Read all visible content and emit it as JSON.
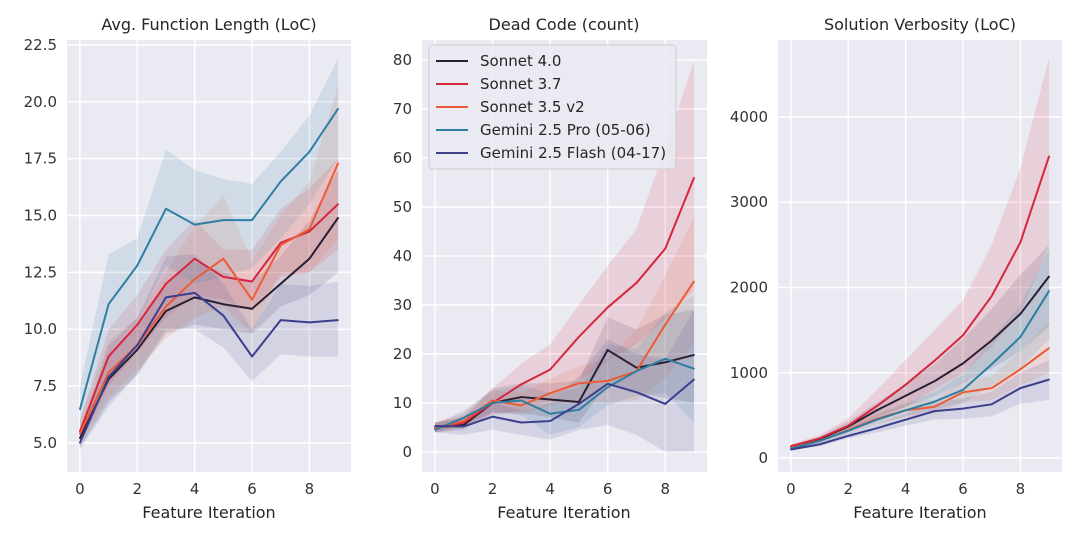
{
  "series_colors": {
    "Sonnet 4.0": "#2b1d33",
    "Sonnet 3.7": "#d6263f",
    "Sonnet 3.5 v2": "#ec5b38",
    "Gemini 2.5 Pro (05-06)": "#2f7ea1",
    "Gemini 2.5 Flash (04-17)": "#3c3f8c"
  },
  "background": "#eaeaf2",
  "chart_data": [
    {
      "type": "line",
      "title": "Avg. Function Length (LoC)",
      "xlabel": "Feature Iteration",
      "ylabel": "",
      "xlim": [
        -0.45,
        9.45
      ],
      "ylim": [
        3.72,
        22.72
      ],
      "xticks": [
        0,
        2,
        4,
        6,
        8
      ],
      "yticks": [
        "5.0",
        "7.5",
        "10.0",
        "12.5",
        "15.0",
        "17.5",
        "20.0",
        "22.5"
      ],
      "grid": true,
      "legend": "none",
      "x": [
        0,
        1,
        2,
        3,
        4,
        5,
        6,
        7,
        8,
        9
      ],
      "series": [
        {
          "name": "Sonnet 4.0",
          "values": [
            5.2,
            7.8,
            9.1,
            10.8,
            11.4,
            11.1,
            10.9,
            12.0,
            13.1,
            14.9
          ],
          "lower": [
            4.8,
            6.8,
            8.0,
            9.8,
            10.2,
            10.0,
            9.8,
            11.0,
            11.5,
            12.5
          ],
          "upper": [
            5.6,
            9.0,
            10.2,
            12.0,
            13.0,
            12.5,
            12.1,
            13.2,
            14.8,
            17.0
          ]
        },
        {
          "name": "Sonnet 3.7",
          "values": [
            5.5,
            8.8,
            10.2,
            12.0,
            13.1,
            12.3,
            12.1,
            13.8,
            14.3,
            15.5
          ],
          "lower": [
            5.0,
            7.5,
            9.0,
            10.5,
            11.5,
            11.3,
            10.8,
            12.3,
            12.5,
            13.5
          ],
          "upper": [
            6.0,
            10.0,
            11.5,
            13.5,
            14.8,
            13.5,
            13.5,
            15.3,
            16.2,
            17.5
          ]
        },
        {
          "name": "Sonnet 3.5 v2",
          "values": [
            5.4,
            8.1,
            9.3,
            11.0,
            12.2,
            13.1,
            11.3,
            13.7,
            14.4,
            17.3
          ],
          "lower": [
            5.0,
            7.0,
            8.2,
            9.6,
            10.5,
            11.0,
            9.8,
            12.5,
            12.5,
            14.0
          ],
          "upper": [
            6.0,
            9.5,
            10.5,
            12.5,
            14.5,
            15.9,
            13.0,
            15.0,
            16.5,
            20.7
          ]
        },
        {
          "name": "Gemini 2.5 Pro (05-06)",
          "values": [
            6.47,
            11.1,
            12.8,
            15.3,
            14.6,
            14.8,
            14.8,
            16.5,
            17.8,
            19.7
          ],
          "lower": [
            5.5,
            9.0,
            10.3,
            12.8,
            12.0,
            12.3,
            12.7,
            14.0,
            15.5,
            17.5
          ],
          "upper": [
            7.5,
            13.3,
            14.0,
            17.9,
            17.0,
            16.6,
            16.4,
            17.8,
            19.4,
            21.9
          ]
        },
        {
          "name": "Gemini 2.5 Flash (04-17)",
          "values": [
            5.0,
            7.9,
            9.3,
            11.4,
            11.6,
            10.6,
            8.8,
            10.4,
            10.3,
            10.4
          ],
          "lower": [
            4.7,
            6.6,
            8.0,
            10.0,
            10.0,
            9.2,
            7.7,
            8.9,
            8.8,
            8.8
          ],
          "upper": [
            5.4,
            9.3,
            10.5,
            13.2,
            13.3,
            12.0,
            10.0,
            12.0,
            11.9,
            12.1
          ]
        }
      ]
    },
    {
      "type": "line",
      "title": "Dead Code (count)",
      "xlabel": "Feature Iteration",
      "ylabel": "",
      "xlim": [
        -0.45,
        9.45
      ],
      "ylim": [
        -4.1,
        84.1
      ],
      "xticks": [
        0,
        2,
        4,
        6,
        8
      ],
      "yticks": [
        "0",
        "10",
        "20",
        "30",
        "40",
        "50",
        "60",
        "70",
        "80"
      ],
      "grid": true,
      "legend": "upper-left",
      "x": [
        0,
        1,
        2,
        3,
        4,
        5,
        6,
        7,
        8,
        9
      ],
      "series": [
        {
          "name": "Sonnet 4.0",
          "values": [
            5.0,
            5.5,
            10.0,
            11.2,
            10.7,
            10.2,
            20.8,
            17.2,
            18.3,
            19.8
          ],
          "lower": [
            4,
            4.5,
            8,
            8,
            7,
            6,
            14,
            12,
            11,
            10
          ],
          "upper": [
            6,
            7,
            13,
            14,
            14,
            14.5,
            27.5,
            25,
            28,
            29
          ]
        },
        {
          "name": "Sonnet 3.7",
          "values": [
            4.8,
            6.0,
            10.0,
            13.8,
            16.8,
            23.5,
            29.5,
            34.5,
            41.5,
            56.0
          ],
          "lower": [
            4,
            5,
            7.5,
            8.5,
            10.5,
            14.5,
            18.5,
            22,
            27,
            33
          ],
          "upper": [
            6,
            8,
            13,
            18,
            22,
            30,
            38,
            45.5,
            62,
            80
          ]
        },
        {
          "name": "Sonnet 3.5 v2",
          "values": [
            5.0,
            6.3,
            10.5,
            9.5,
            12.0,
            14.0,
            14.5,
            16.5,
            26.0,
            34.8
          ],
          "lower": [
            4,
            5,
            8.5,
            7.5,
            9.5,
            10.5,
            10,
            10.5,
            15,
            22
          ],
          "upper": [
            6,
            7.5,
            12.5,
            12,
            15,
            17.5,
            19,
            25,
            36,
            48
          ]
        },
        {
          "name": "Gemini 2.5 Pro (05-06)",
          "values": [
            4.5,
            7.0,
            10.0,
            10.5,
            7.8,
            8.6,
            13.2,
            16.5,
            19.0,
            17.0
          ],
          "lower": [
            4,
            5.5,
            8,
            7.5,
            3.5,
            5,
            9.5,
            11.5,
            12,
            6
          ],
          "upper": [
            5.5,
            8.5,
            12.5,
            13.5,
            12,
            13,
            22,
            21,
            28.5,
            32
          ]
        },
        {
          "name": "Gemini 2.5 Flash (04-17)",
          "values": [
            5.3,
            5.2,
            7.2,
            6.0,
            6.3,
            9.8,
            13.9,
            12.2,
            9.8,
            14.8
          ],
          "lower": [
            4,
            3.5,
            4.5,
            3.5,
            2.5,
            4.5,
            5.5,
            3.5,
            0,
            0
          ],
          "upper": [
            6,
            7,
            10,
            8.5,
            10,
            15.5,
            23,
            20,
            19,
            29
          ]
        }
      ]
    },
    {
      "type": "line",
      "title": "Solution Verbosity (LoC)",
      "xlabel": "Feature Iteration",
      "ylabel": "",
      "xlim": [
        -0.45,
        9.45
      ],
      "ylim": [
        -164,
        4903
      ],
      "xticks": [
        0,
        2,
        4,
        6,
        8
      ],
      "yticks": [
        "0",
        "1000",
        "2000",
        "3000",
        "4000"
      ],
      "grid": true,
      "legend": "none",
      "x": [
        0,
        1,
        2,
        3,
        4,
        5,
        6,
        7,
        8,
        9
      ],
      "series": [
        {
          "name": "Sonnet 4.0",
          "values": [
            130,
            220,
            370,
            560,
            730,
            900,
            1110,
            1380,
            1690,
            2130
          ],
          "lower": [
            110,
            190,
            320,
            480,
            600,
            720,
            880,
            1050,
            1250,
            1550
          ],
          "upper": [
            150,
            250,
            430,
            650,
            870,
            1100,
            1400,
            1750,
            2150,
            2500
          ]
        },
        {
          "name": "Sonnet 3.7",
          "values": [
            140,
            230,
            380,
            610,
            860,
            1140,
            1440,
            1900,
            2530,
            3540
          ],
          "lower": [
            120,
            200,
            300,
            450,
            600,
            800,
            1000,
            1300,
            1700,
            2500
          ],
          "upper": [
            160,
            270,
            470,
            800,
            1150,
            1500,
            1850,
            2500,
            3400,
            4700
          ]
        },
        {
          "name": "Sonnet 3.5 v2",
          "values": [
            120,
            200,
            330,
            460,
            560,
            600,
            770,
            820,
            1040,
            1290
          ],
          "lower": [
            100,
            170,
            290,
            400,
            480,
            520,
            650,
            680,
            850,
            1000
          ],
          "upper": [
            140,
            230,
            380,
            530,
            650,
            690,
            900,
            960,
            1250,
            1600
          ]
        },
        {
          "name": "Gemini 2.5 Pro (05-06)",
          "values": [
            110,
            200,
            320,
            450,
            560,
            660,
            800,
            1100,
            1420,
            1960
          ],
          "lower": [
            90,
            170,
            280,
            400,
            490,
            570,
            650,
            850,
            1050,
            1400
          ],
          "upper": [
            130,
            230,
            370,
            510,
            640,
            770,
            980,
            1400,
            1800,
            2450
          ]
        },
        {
          "name": "Gemini 2.5 Flash (04-17)",
          "values": [
            100,
            160,
            260,
            350,
            450,
            550,
            580,
            630,
            820,
            920
          ],
          "lower": [
            85,
            140,
            230,
            300,
            380,
            450,
            460,
            490,
            640,
            680
          ],
          "upper": [
            115,
            180,
            290,
            400,
            520,
            640,
            700,
            780,
            1000,
            1150
          ]
        }
      ]
    }
  ]
}
